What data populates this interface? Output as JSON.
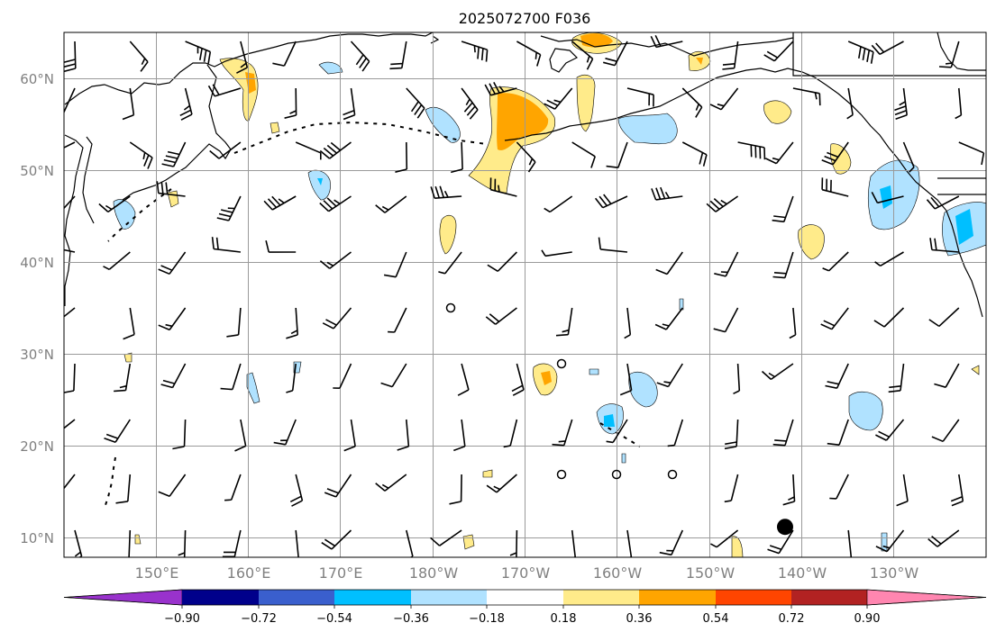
{
  "title": "2025072700 F036",
  "map": {
    "lon_range": [
      140,
      240
    ],
    "lat_range": [
      8,
      65
    ],
    "lat_labels": [
      "60°N",
      "50°N",
      "40°N",
      "30°N",
      "20°N",
      "10°N"
    ],
    "lon_labels": [
      "150°E",
      "160°E",
      "170°E",
      "180°W",
      "170°W",
      "160°W",
      "150°W",
      "140°W",
      "130°W"
    ],
    "marker": {
      "type": "filled-circle",
      "lon": 218.2,
      "lat": 11.3,
      "color": "#000000"
    }
  },
  "colorbar": {
    "bounds": [
      "−0.90",
      "−0.72",
      "−0.54",
      "−0.36",
      "−0.18",
      "0.18",
      "0.36",
      "0.54",
      "0.72",
      "0.90"
    ],
    "colors": [
      "#9932cc",
      "#00008b",
      "#3a5fcd",
      "#00bfff",
      "#b0e2ff",
      "#ffffff",
      "#ffeb8a",
      "#ffa500",
      "#ff4500",
      "#b22222",
      "#ff86b0"
    ]
  },
  "anomaly_colors": {
    "pos1": "#ffeb8a",
    "pos2": "#ffa500",
    "neg1": "#b0e2ff",
    "neg2": "#00bfff"
  }
}
